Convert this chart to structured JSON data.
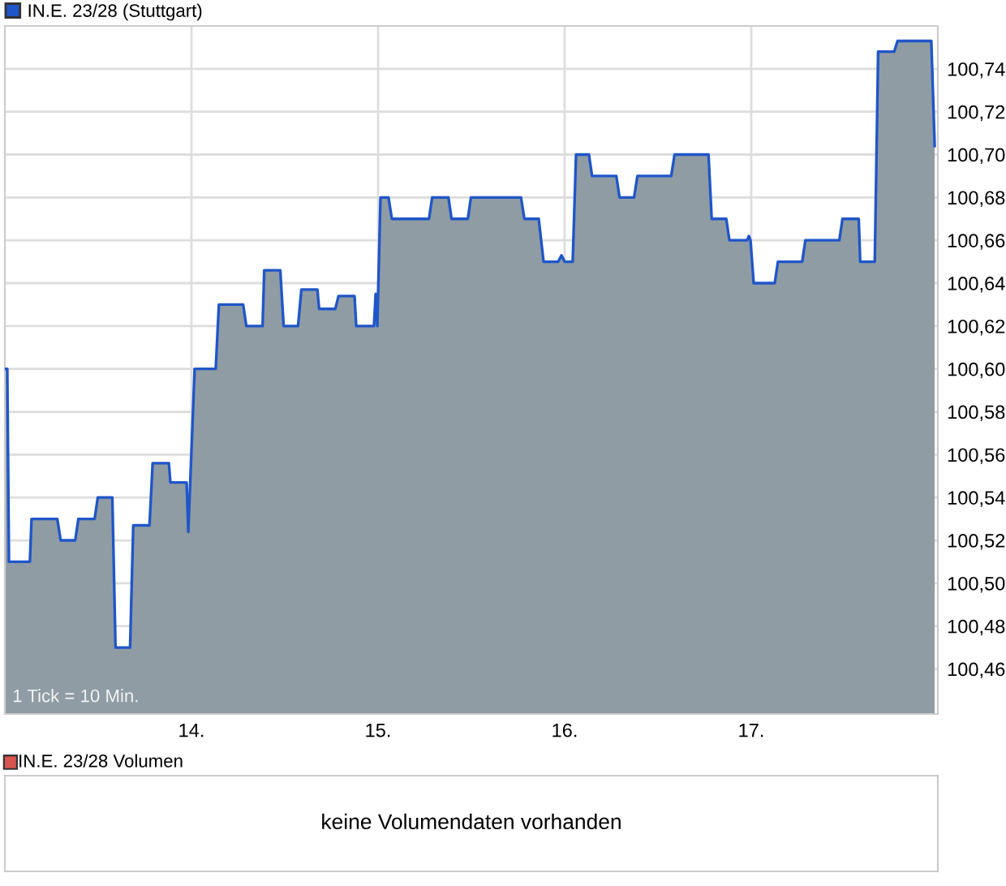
{
  "chart_data": [
    {
      "type": "area",
      "legend": "top left",
      "grid": true,
      "tick_labels": "xy",
      "series": [
        {
          "name": "IN.E. 23/28 (Stuttgart)",
          "color": "#1f56c8",
          "x": [
            13.004,
            13.013,
            13.022,
            13.134,
            13.143,
            13.281,
            13.299,
            13.377,
            13.394,
            13.481,
            13.498,
            13.576,
            13.593,
            13.671,
            13.688,
            13.775,
            13.792,
            13.879,
            13.887,
            13.974,
            13.983,
            14.017,
            14.13,
            14.147,
            14.277,
            14.294,
            14.381,
            14.39,
            14.476,
            14.494,
            14.571,
            14.589,
            14.675,
            14.684,
            14.771,
            14.788,
            14.874,
            14.883,
            14.978,
            14.987,
            14.996,
            15.013,
            15.056,
            15.074,
            15.273,
            15.29,
            15.377,
            15.394,
            15.481,
            15.498,
            15.766,
            15.784,
            15.861,
            15.887,
            15.965,
            15.983,
            16.0,
            16.043,
            16.061,
            16.13,
            16.147,
            16.277,
            16.294,
            16.372,
            16.39,
            16.571,
            16.589,
            16.771,
            16.788,
            16.866,
            16.883,
            16.978,
            16.987,
            16.996,
            17.013,
            17.126,
            17.143,
            17.273,
            17.29,
            17.472,
            17.489,
            17.576,
            17.584,
            17.662,
            17.68,
            17.766,
            17.784,
            17.965,
            17.983
          ],
          "values": [
            100.6,
            100.6,
            100.51,
            100.51,
            100.53,
            100.53,
            100.52,
            100.52,
            100.53,
            100.53,
            100.54,
            100.54,
            100.47,
            100.47,
            100.527,
            100.527,
            100.556,
            100.556,
            100.547,
            100.547,
            100.524,
            100.6,
            100.6,
            100.63,
            100.63,
            100.62,
            100.62,
            100.646,
            100.646,
            100.62,
            100.62,
            100.637,
            100.637,
            100.628,
            100.628,
            100.634,
            100.634,
            100.62,
            100.62,
            100.635,
            100.62,
            100.68,
            100.68,
            100.67,
            100.67,
            100.68,
            100.68,
            100.67,
            100.67,
            100.68,
            100.68,
            100.67,
            100.67,
            100.65,
            100.65,
            100.653,
            100.65,
            100.65,
            100.7,
            100.7,
            100.69,
            100.69,
            100.68,
            100.68,
            100.69,
            100.69,
            100.7,
            100.7,
            100.67,
            100.67,
            100.66,
            100.66,
            100.662,
            100.66,
            100.64,
            100.64,
            100.65,
            100.65,
            100.66,
            100.66,
            100.67,
            100.67,
            100.65,
            100.65,
            100.748,
            100.748,
            100.753,
            100.753,
            100.704
          ]
        }
      ],
      "xlim": [
        13.0,
        18.0
      ],
      "xticks": [
        {
          "value": 14,
          "label": "14."
        },
        {
          "value": 15,
          "label": "15."
        },
        {
          "value": 16,
          "label": "16."
        },
        {
          "value": 17,
          "label": "17."
        }
      ],
      "ylim": [
        100.439,
        100.76
      ],
      "yticks": [
        {
          "value": 100.46,
          "label": "100,46"
        },
        {
          "value": 100.48,
          "label": "100,48"
        },
        {
          "value": 100.5,
          "label": "100,50"
        },
        {
          "value": 100.52,
          "label": "100,52"
        },
        {
          "value": 100.54,
          "label": "100,54"
        },
        {
          "value": 100.56,
          "label": "100,56"
        },
        {
          "value": 100.58,
          "label": "100,58"
        },
        {
          "value": 100.6,
          "label": "100,60"
        },
        {
          "value": 100.62,
          "label": "100,62"
        },
        {
          "value": 100.64,
          "label": "100,64"
        },
        {
          "value": 100.66,
          "label": "100,66"
        },
        {
          "value": 100.68,
          "label": "100,68"
        },
        {
          "value": 100.7,
          "label": "100,70"
        },
        {
          "value": 100.72,
          "label": "100,72"
        },
        {
          "value": 100.74,
          "label": "100,74"
        }
      ],
      "annotations": [
        "1 Tick = 10 Min."
      ]
    },
    {
      "type": "other",
      "title": "IN.E. 23/28 Volumen",
      "annotations": [
        "keine Volumendaten vorhanden"
      ]
    }
  ]
}
